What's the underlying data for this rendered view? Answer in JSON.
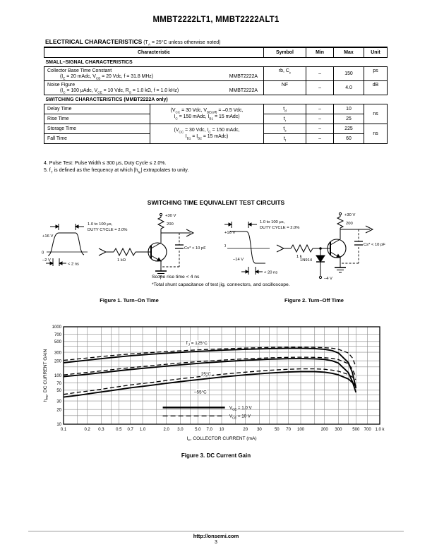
{
  "page": {
    "title": "MMBT2222LT1, MMBT2222ALT1"
  },
  "electrical": {
    "heading": "ELECTRICAL CHARACTERISTICS",
    "heading_note_rich": [
      {
        "t": " (T"
      },
      {
        "t": "A",
        "s": "sub"
      },
      {
        "t": " = 25°C unless otherwise noted)"
      }
    ],
    "table": {
      "headers": {
        "characteristic": "Characteristic",
        "symbol": "Symbol",
        "min": "Min",
        "max": "Max",
        "unit": "Unit"
      },
      "small_signal": {
        "section": "SMALL–SIGNAL CHARACTERISTICS",
        "rows": [
          {
            "name": "Collector Base Time Constant",
            "cond_rich": [
              {
                "t": "(I"
              },
              {
                "t": "E",
                "s": "sub"
              },
              {
                "t": " = 20 mAdc, V"
              },
              {
                "t": "CB",
                "s": "sub"
              },
              {
                "t": " = 20 Vdc, f = 31.8 MHz)"
              }
            ],
            "device": "MMBT2222A",
            "symbol_rich": [
              {
                "t": "rb, C"
              },
              {
                "t": "c",
                "s": "sub"
              }
            ],
            "min": "–",
            "max": "150",
            "unit": "ps"
          },
          {
            "name": "Noise Figure",
            "cond_rich": [
              {
                "t": "(I"
              },
              {
                "t": "C",
                "s": "sub"
              },
              {
                "t": " = 100 μAdc, V"
              },
              {
                "t": "CE",
                "s": "sub"
              },
              {
                "t": " = 10 Vdc, R"
              },
              {
                "t": "S",
                "s": "sub"
              },
              {
                "t": " = 1.0 kΩ, f = 1.0 kHz)"
              }
            ],
            "device": "MMBT2222A",
            "symbol_rich": [
              {
                "t": "NF"
              }
            ],
            "min": "–",
            "max": "4.0",
            "unit": "dB"
          }
        ]
      },
      "switching": {
        "section": "SWITCHING CHARACTERISTICS (MMBT2222A only)",
        "cond1_line1_rich": [
          {
            "t": "(V"
          },
          {
            "t": "CC",
            "s": "sub"
          },
          {
            "t": " = 30 Vdc, V"
          },
          {
            "t": "BE(off)",
            "s": "sub"
          },
          {
            "t": " = –0.5 Vdc,"
          }
        ],
        "cond1_line2_rich": [
          {
            "t": "I"
          },
          {
            "t": "C",
            "s": "sub"
          },
          {
            "t": " = 150 mAdc, I"
          },
          {
            "t": "B1",
            "s": "sub"
          },
          {
            "t": " = 15 mAdc)"
          }
        ],
        "cond2_line1_rich": [
          {
            "t": "(V"
          },
          {
            "t": "CC",
            "s": "sub"
          },
          {
            "t": " = 30 Vdc, I"
          },
          {
            "t": "C",
            "s": "sub"
          },
          {
            "t": " = 150 mAdc,"
          }
        ],
        "cond2_line2_rich": [
          {
            "t": "I"
          },
          {
            "t": "B1",
            "s": "sub"
          },
          {
            "t": " = I"
          },
          {
            "t": "B2",
            "s": "sub"
          },
          {
            "t": " = 15 mAdc)"
          }
        ],
        "unit1": "ns",
        "unit2": "ns",
        "rows": [
          {
            "name": "Delay Time",
            "symbol_rich": [
              {
                "t": "t"
              },
              {
                "t": "d",
                "s": "sub"
              }
            ],
            "min": "–",
            "max": "10"
          },
          {
            "name": "Rise Time",
            "symbol_rich": [
              {
                "t": "t"
              },
              {
                "t": "r",
                "s": "sub"
              }
            ],
            "min": "–",
            "max": "25"
          },
          {
            "name": "Storage Time",
            "symbol_rich": [
              {
                "t": "t"
              },
              {
                "t": "s",
                "s": "sub"
              }
            ],
            "min": "–",
            "max": "225"
          },
          {
            "name": "Fall Time",
            "symbol_rich": [
              {
                "t": "t"
              },
              {
                "t": "f",
                "s": "sub"
              }
            ],
            "min": "–",
            "max": "60"
          }
        ]
      }
    },
    "notes": {
      "note4": "4.  Pulse Test: Pulse Width ≤ 300 μs, Duty Cycle ≤ 2.0%.",
      "note5_rich": [
        {
          "t": "5.  f"
        },
        {
          "t": "T",
          "s": "sub"
        },
        {
          "t": " is defined as the frequency at which |h"
        },
        {
          "t": "fe",
          "s": "sub"
        },
        {
          "t": "| extrapolates to unity."
        }
      ]
    }
  },
  "circuits": {
    "heading": "SWITCHING TIME EQUIVALENT TEST CIRCUITS",
    "fig1": {
      "caption": "Figure 1. Turn–On Time",
      "labels": {
        "v_high": "+16 V",
        "zero": "0",
        "v_low": "–2 V",
        "edge": "< 2 ns",
        "pw1": "1.0 to 100 μs,",
        "pw2": "DUTY CYCLE = 2.0%",
        "rb": "1 kΩ",
        "vcc": "+30 V",
        "rc": "200",
        "cs": "Cs* < 10 pF"
      }
    },
    "fig2": {
      "caption": "Figure 2. Turn–Off Time",
      "labels": {
        "v_high": "+16 V",
        "zero": "0",
        "v_low": "–14 V",
        "edge": "< 20 ns",
        "pw1": "1.0 to 100 μs,",
        "pw2": "DUTY CYCLE = 2.0%",
        "rb": "1 k",
        "diode": "1N914",
        "vee": "–4 V",
        "vcc": "+30 V",
        "rc": "200",
        "cs": "Cs* < 10 pF"
      }
    },
    "notes": {
      "scope": "Scope rise time < 4 ns",
      "shunt": "*Total shunt capacitance of test jig, connectors, and oscilloscope."
    }
  },
  "chart_data": {
    "type": "line",
    "title": "Figure 3. DC Current Gain",
    "xlabel": "IC, COLLECTOR CURRENT (mA)",
    "ylabel": "hFE, DC CURRENT GAIN",
    "xlabel_rich": [
      {
        "t": "I"
      },
      {
        "t": "C",
        "s": "sub"
      },
      {
        "t": ", COLLECTOR CURRENT (mA)"
      }
    ],
    "ylabel_rich": [
      {
        "t": "h"
      },
      {
        "t": "FE",
        "s": "sub"
      },
      {
        "t": ", DC CURRENT GAIN"
      }
    ],
    "x_scale": "log",
    "y_scale": "log",
    "xlim": [
      0.1,
      1000
    ],
    "ylim": [
      10,
      1000
    ],
    "grid": true,
    "x_ticks": [
      {
        "v": 0.1,
        "l": "0.1"
      },
      {
        "v": 0.2,
        "l": "0.2"
      },
      {
        "v": 0.3,
        "l": "0.3"
      },
      {
        "v": 0.5,
        "l": "0.5"
      },
      {
        "v": 0.7,
        "l": "0.7"
      },
      {
        "v": 1,
        "l": "1.0"
      },
      {
        "v": 2,
        "l": "2.0"
      },
      {
        "v": 3,
        "l": "3.0"
      },
      {
        "v": 5,
        "l": "5.0"
      },
      {
        "v": 7,
        "l": "7.0"
      },
      {
        "v": 10,
        "l": "10"
      },
      {
        "v": 20,
        "l": "20"
      },
      {
        "v": 30,
        "l": "30"
      },
      {
        "v": 50,
        "l": "50"
      },
      {
        "v": 70,
        "l": "70"
      },
      {
        "v": 100,
        "l": "100"
      },
      {
        "v": 200,
        "l": "200"
      },
      {
        "v": 300,
        "l": "300"
      },
      {
        "v": 500,
        "l": "500"
      },
      {
        "v": 700,
        "l": "700"
      },
      {
        "v": 1000,
        "l": "1.0 k"
      }
    ],
    "y_ticks": [
      {
        "v": 10,
        "l": "10"
      },
      {
        "v": 20,
        "l": "20"
      },
      {
        "v": 30,
        "l": "30"
      },
      {
        "v": 50,
        "l": "50"
      },
      {
        "v": 70,
        "l": "70"
      },
      {
        "v": 100,
        "l": "100"
      },
      {
        "v": 200,
        "l": "200"
      },
      {
        "v": 300,
        "l": "300"
      },
      {
        "v": 500,
        "l": "500"
      },
      {
        "v": 700,
        "l": "700"
      },
      {
        "v": 1000,
        "l": "1000"
      }
    ],
    "x": [
      0.1,
      0.15,
      0.25,
      0.4,
      0.7,
      1.2,
      2,
      3.5,
      6,
      10,
      20,
      40,
      70,
      100,
      150,
      200,
      250,
      300,
      400,
      450,
      500
    ],
    "series": [
      {
        "name": "TJ = 125°C, VCE = 1.0 V",
        "style": "solid",
        "values": [
          183,
          196,
          215,
          233,
          254,
          271,
          287,
          303,
          317,
          330,
          345,
          357,
          362,
          362,
          357,
          345,
          325,
          290,
          185,
          115,
          55
        ]
      },
      {
        "name": "TJ = 125°C, VCE = 10 V",
        "style": "dashed",
        "values": [
          205,
          218,
          237,
          256,
          277,
          294,
          310,
          326,
          340,
          352,
          366,
          376,
          380,
          380,
          378,
          372,
          362,
          345,
          290,
          230,
          150
        ]
      },
      {
        "name": "TJ = 25°C, VCE = 1.0 V",
        "style": "solid",
        "values": [
          95,
          101,
          110,
          120,
          133,
          144,
          156,
          169,
          181,
          192,
          205,
          216,
          221,
          222,
          220,
          214,
          200,
          180,
          115,
          75,
          45
        ]
      },
      {
        "name": "TJ = 25°C, VCE = 10 V",
        "style": "dashed",
        "values": [
          103,
          110,
          120,
          131,
          145,
          157,
          170,
          184,
          196,
          207,
          220,
          231,
          236,
          237,
          236,
          232,
          224,
          212,
          175,
          135,
          93
        ]
      },
      {
        "name": "TJ = -55°C, VCE = 1.0 V",
        "style": "solid",
        "values": [
          36,
          39,
          44,
          49,
          56,
          62,
          69,
          77,
          85,
          93,
          103,
          112,
          118,
          120,
          120,
          117,
          111,
          103,
          85,
          72,
          60
        ]
      },
      {
        "name": "TJ = -55°C, VCE = 10 V",
        "style": "dashed",
        "values": [
          41,
          45,
          50,
          56,
          64,
          71,
          79,
          88,
          97,
          106,
          117,
          128,
          134,
          137,
          137,
          134,
          129,
          122,
          105,
          93,
          82
        ]
      }
    ],
    "curve_labels": [
      {
        "x": 3.5,
        "y": 465,
        "segs": [
          {
            "t": "T"
          },
          {
            "t": "J",
            "s": "sub"
          },
          {
            "t": " = 125°C"
          }
        ]
      },
      {
        "x": 5.5,
        "y": 107,
        "segs": [
          {
            "t": "25°C"
          }
        ]
      },
      {
        "x": 4.5,
        "y": 46,
        "segs": [
          {
            "t": "–55°C"
          }
        ]
      }
    ],
    "legend": {
      "position": "inside-bottom",
      "line_x": [
        1.8,
        11
      ],
      "text_x": 12.5,
      "items": [
        {
          "style": "solid",
          "y": 22,
          "segs": [
            {
              "t": "V"
            },
            {
              "t": "CE",
              "s": "sub"
            },
            {
              "t": " = 1.0 V"
            }
          ]
        },
        {
          "style": "dashed",
          "y": 14.8,
          "segs": [
            {
              "t": "V"
            },
            {
              "t": "CE",
              "s": "sub"
            },
            {
              "t": " = 10 V"
            }
          ]
        }
      ]
    }
  },
  "footer": {
    "url": "http://onsemi.com",
    "page_number": "3"
  }
}
